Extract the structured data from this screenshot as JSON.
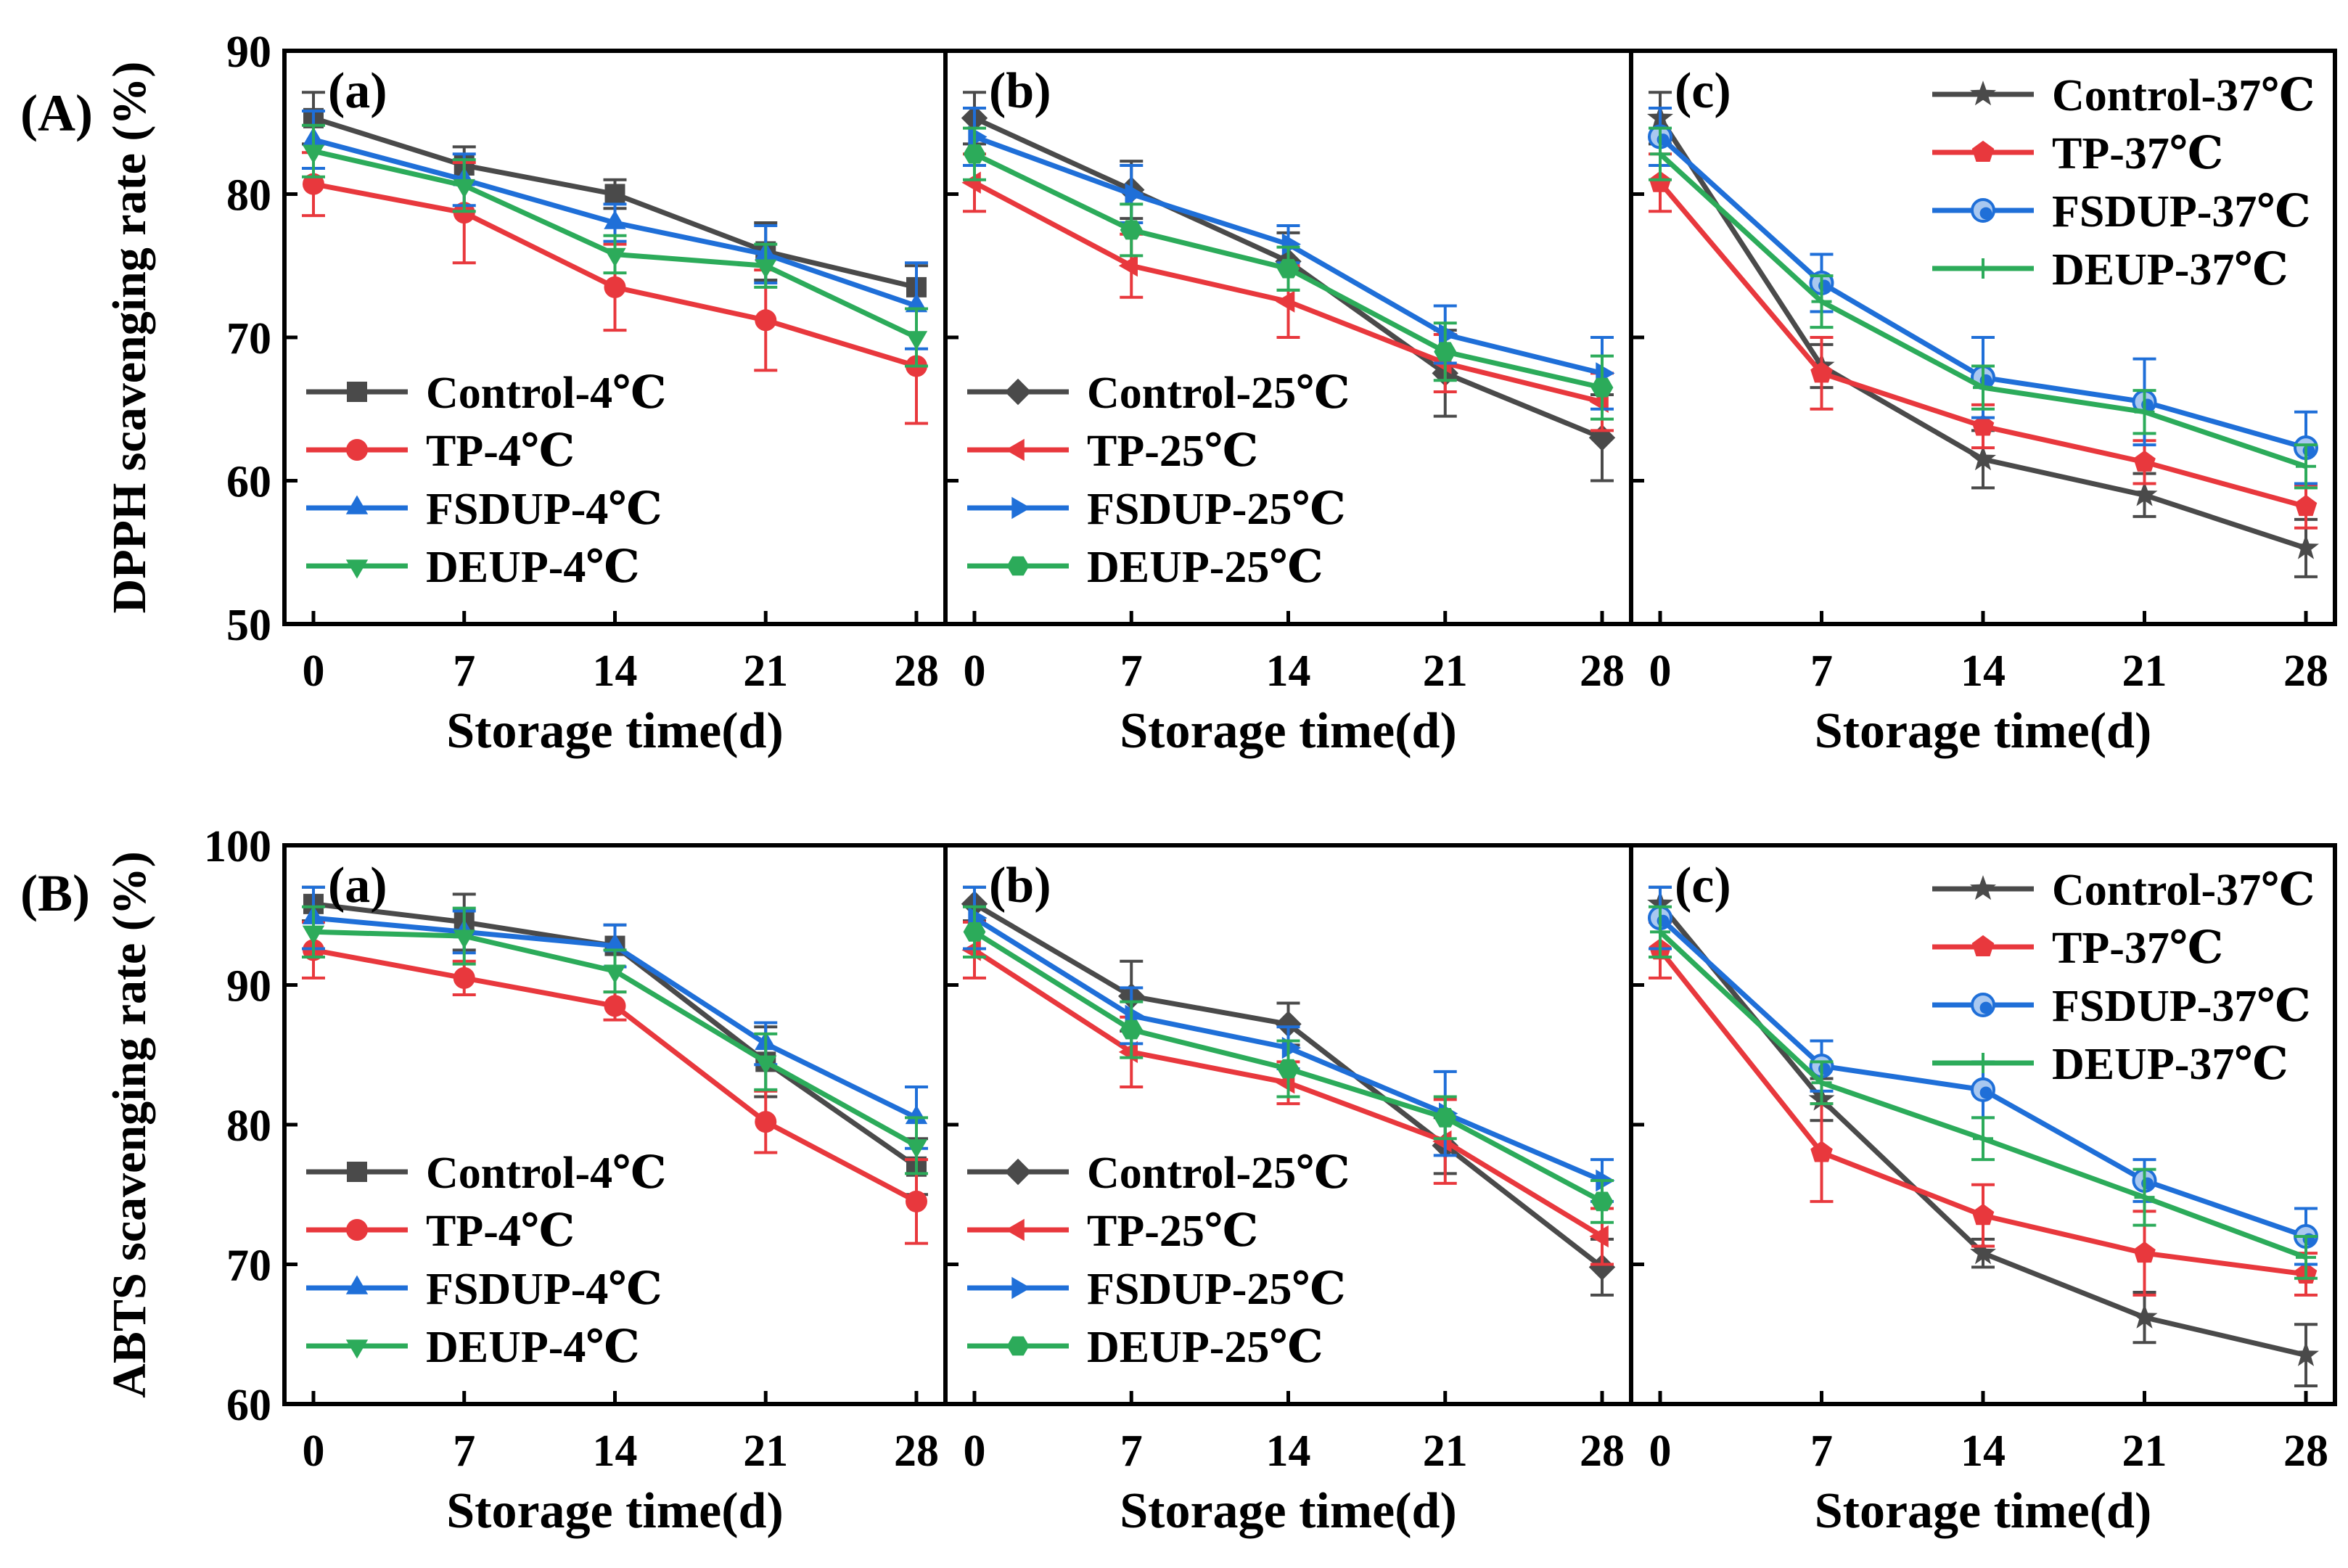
{
  "figure": {
    "row_labels": [
      "(A)",
      "(B)"
    ],
    "panel_labels": [
      "(a)",
      "(b)",
      "(c)"
    ]
  },
  "colors": {
    "Control": "#4a4a4a",
    "TP": "#e8383d",
    "FSDUP": "#1f6fd8",
    "DEUP": "#2cab5a",
    "frame": "#000000"
  },
  "chart_data": [
    {
      "type": "line",
      "id": "A-a",
      "row_label": "(A)",
      "panel_label": "(a)",
      "ylabel": "DPPH scavenging rate (%)",
      "xlabel": "Storage time(d)",
      "x": [
        0,
        7,
        14,
        21,
        28
      ],
      "xticks": [
        "0",
        "7",
        "14",
        "21",
        "28"
      ],
      "ylim": [
        50,
        90
      ],
      "yticks": [
        "50",
        "60",
        "70",
        "80",
        "90"
      ],
      "legend_position": "bottom-left",
      "series": [
        {
          "name": "Control-4℃",
          "group": "Control",
          "marker": "square",
          "values": [
            85.3,
            82.0,
            80.0,
            76.0,
            73.5
          ],
          "errors": [
            1.8,
            1.3,
            1.0,
            2.0,
            1.5
          ]
        },
        {
          "name": "TP-4℃",
          "group": "TP",
          "marker": "circle",
          "values": [
            80.7,
            78.7,
            73.5,
            71.2,
            68.0
          ],
          "errors": [
            2.2,
            3.5,
            3.0,
            3.5,
            4.0
          ]
        },
        {
          "name": "FSDUP-4℃",
          "group": "FSDUP",
          "marker": "triangle-up",
          "values": [
            83.8,
            81.0,
            78.0,
            75.8,
            72.2
          ],
          "errors": [
            2.0,
            1.8,
            1.3,
            2.0,
            3.0
          ]
        },
        {
          "name": "DEUP-4℃",
          "group": "DEUP",
          "marker": "triangle-down",
          "values": [
            83.0,
            80.6,
            75.8,
            75.0,
            70.0
          ],
          "errors": [
            1.8,
            1.8,
            1.3,
            1.5,
            2.0
          ]
        }
      ]
    },
    {
      "type": "line",
      "id": "A-b",
      "panel_label": "(b)",
      "xlabel": "Storage time(d)",
      "x": [
        0,
        7,
        14,
        21,
        28
      ],
      "xticks": [
        "0",
        "7",
        "14",
        "21",
        "28"
      ],
      "ylim": [
        50,
        90
      ],
      "legend_position": "bottom-left",
      "series": [
        {
          "name": "Control-25℃",
          "group": "Control",
          "marker": "diamond",
          "values": [
            85.3,
            80.3,
            75.3,
            67.5,
            63.0
          ],
          "errors": [
            1.8,
            2.0,
            2.0,
            3.0,
            3.0
          ]
        },
        {
          "name": "TP-25℃",
          "group": "TP",
          "marker": "triangle-left",
          "values": [
            80.8,
            75.0,
            72.5,
            68.2,
            65.5
          ],
          "errors": [
            2.0,
            2.2,
            2.5,
            2.0,
            2.0
          ]
        },
        {
          "name": "FSDUP-25℃",
          "group": "FSDUP",
          "marker": "triangle-right",
          "values": [
            84.0,
            80.0,
            76.5,
            70.2,
            67.5
          ],
          "errors": [
            2.0,
            2.0,
            1.3,
            2.0,
            2.5
          ]
        },
        {
          "name": "DEUP-25℃",
          "group": "DEUP",
          "marker": "hexagon",
          "values": [
            82.8,
            77.5,
            74.8,
            69.0,
            66.5
          ],
          "errors": [
            1.8,
            1.8,
            1.5,
            2.0,
            2.2
          ]
        }
      ]
    },
    {
      "type": "line",
      "id": "A-c",
      "panel_label": "(c)",
      "xlabel": "Storage time(d)",
      "x": [
        0,
        7,
        14,
        21,
        28
      ],
      "xticks": [
        "0",
        "7",
        "14",
        "21",
        "28"
      ],
      "ylim": [
        50,
        90
      ],
      "legend_position": "top-right",
      "series": [
        {
          "name": "Control-37℃",
          "group": "Control",
          "marker": "star",
          "values": [
            85.3,
            68.0,
            61.5,
            59.0,
            55.3
          ],
          "errors": [
            1.8,
            1.5,
            2.0,
            1.5,
            2.0
          ]
        },
        {
          "name": "TP-37℃",
          "group": "TP",
          "marker": "pentagon",
          "values": [
            80.8,
            67.5,
            63.8,
            61.3,
            58.2
          ],
          "errors": [
            2.0,
            2.5,
            1.5,
            1.5,
            1.5
          ]
        },
        {
          "name": "FSDUP-37℃",
          "group": "FSDUP",
          "marker": "circle-shaded",
          "values": [
            84.0,
            73.8,
            67.2,
            65.5,
            62.3
          ],
          "errors": [
            2.0,
            2.0,
            2.8,
            3.0,
            2.5
          ]
        },
        {
          "name": "DEUP-37℃",
          "group": "DEUP",
          "marker": "plus",
          "values": [
            82.8,
            72.5,
            66.5,
            64.8,
            61.0
          ],
          "errors": [
            1.8,
            1.8,
            1.5,
            1.5,
            1.5
          ]
        }
      ]
    },
    {
      "type": "line",
      "id": "B-a",
      "row_label": "(B)",
      "panel_label": "(a)",
      "ylabel": "ABTS scavenging rate (%)",
      "xlabel": "Storage time(d)",
      "x": [
        0,
        7,
        14,
        21,
        28
      ],
      "xticks": [
        "0",
        "7",
        "14",
        "21",
        "28"
      ],
      "ylim": [
        60,
        100
      ],
      "yticks": [
        "60",
        "70",
        "80",
        "90",
        "100"
      ],
      "legend_position": "bottom-left",
      "series": [
        {
          "name": "Control-4℃",
          "group": "Control",
          "marker": "square",
          "values": [
            95.8,
            94.5,
            92.8,
            84.5,
            77.0
          ],
          "errors": [
            1.2,
            2.0,
            1.5,
            2.5,
            2.0
          ]
        },
        {
          "name": "TP-4℃",
          "group": "TP",
          "marker": "circle",
          "values": [
            92.5,
            90.5,
            88.5,
            80.2,
            74.5
          ],
          "errors": [
            2.0,
            1.2,
            1.0,
            2.2,
            3.0
          ]
        },
        {
          "name": "FSDUP-4℃",
          "group": "FSDUP",
          "marker": "triangle-up",
          "values": [
            94.8,
            93.8,
            92.8,
            85.8,
            80.5
          ],
          "errors": [
            2.2,
            1.5,
            1.5,
            1.5,
            2.2
          ]
        },
        {
          "name": "DEUP-4℃",
          "group": "DEUP",
          "marker": "triangle-down",
          "values": [
            93.8,
            93.5,
            91.0,
            84.5,
            78.5
          ],
          "errors": [
            1.8,
            2.0,
            1.5,
            2.0,
            2.0
          ]
        }
      ]
    },
    {
      "type": "line",
      "id": "B-b",
      "panel_label": "(b)",
      "xlabel": "Storage time(d)",
      "x": [
        0,
        7,
        14,
        21,
        28
      ],
      "xticks": [
        "0",
        "7",
        "14",
        "21",
        "28"
      ],
      "ylim": [
        60,
        100
      ],
      "legend_position": "bottom-left",
      "series": [
        {
          "name": "Control-25℃",
          "group": "Control",
          "marker": "diamond",
          "values": [
            95.8,
            89.2,
            87.2,
            78.5,
            69.8
          ],
          "errors": [
            1.2,
            2.5,
            1.5,
            2.0,
            2.0
          ]
        },
        {
          "name": "TP-25℃",
          "group": "TP",
          "marker": "triangle-left",
          "values": [
            92.5,
            85.2,
            83.0,
            78.8,
            72.0
          ],
          "errors": [
            2.0,
            2.5,
            1.5,
            3.0,
            2.0
          ]
        },
        {
          "name": "FSDUP-25℃",
          "group": "FSDUP",
          "marker": "triangle-right",
          "values": [
            94.8,
            87.8,
            85.5,
            80.8,
            76.0
          ],
          "errors": [
            2.2,
            2.0,
            1.5,
            3.0,
            1.5
          ]
        },
        {
          "name": "DEUP-25℃",
          "group": "DEUP",
          "marker": "hexagon",
          "values": [
            93.8,
            86.8,
            84.0,
            80.5,
            74.5
          ],
          "errors": [
            1.8,
            2.0,
            2.0,
            1.5,
            1.5
          ]
        }
      ]
    },
    {
      "type": "line",
      "id": "B-c",
      "panel_label": "(c)",
      "xlabel": "Storage time(d)",
      "x": [
        0,
        7,
        14,
        21,
        28
      ],
      "xticks": [
        "0",
        "7",
        "14",
        "21",
        "28"
      ],
      "ylim": [
        60,
        100
      ],
      "legend_position": "top-right",
      "series": [
        {
          "name": "Control-37℃",
          "group": "Control",
          "marker": "star",
          "values": [
            95.8,
            81.8,
            70.8,
            66.2,
            63.5
          ],
          "errors": [
            1.2,
            1.5,
            1.0,
            1.8,
            2.2
          ]
        },
        {
          "name": "TP-37℃",
          "group": "TP",
          "marker": "pentagon",
          "values": [
            92.5,
            78.0,
            73.5,
            70.8,
            69.3
          ],
          "errors": [
            2.0,
            3.5,
            2.2,
            3.0,
            1.5
          ]
        },
        {
          "name": "FSDUP-37℃",
          "group": "FSDUP",
          "marker": "circle-shaded",
          "values": [
            94.8,
            84.2,
            82.5,
            76.0,
            72.0
          ],
          "errors": [
            2.2,
            1.8,
            2.0,
            1.5,
            2.0
          ]
        },
        {
          "name": "DEUP-37℃",
          "group": "DEUP",
          "marker": "plus",
          "values": [
            93.8,
            83.0,
            79.0,
            74.8,
            70.5
          ],
          "errors": [
            1.8,
            1.5,
            1.5,
            2.0,
            1.5
          ]
        }
      ]
    }
  ]
}
